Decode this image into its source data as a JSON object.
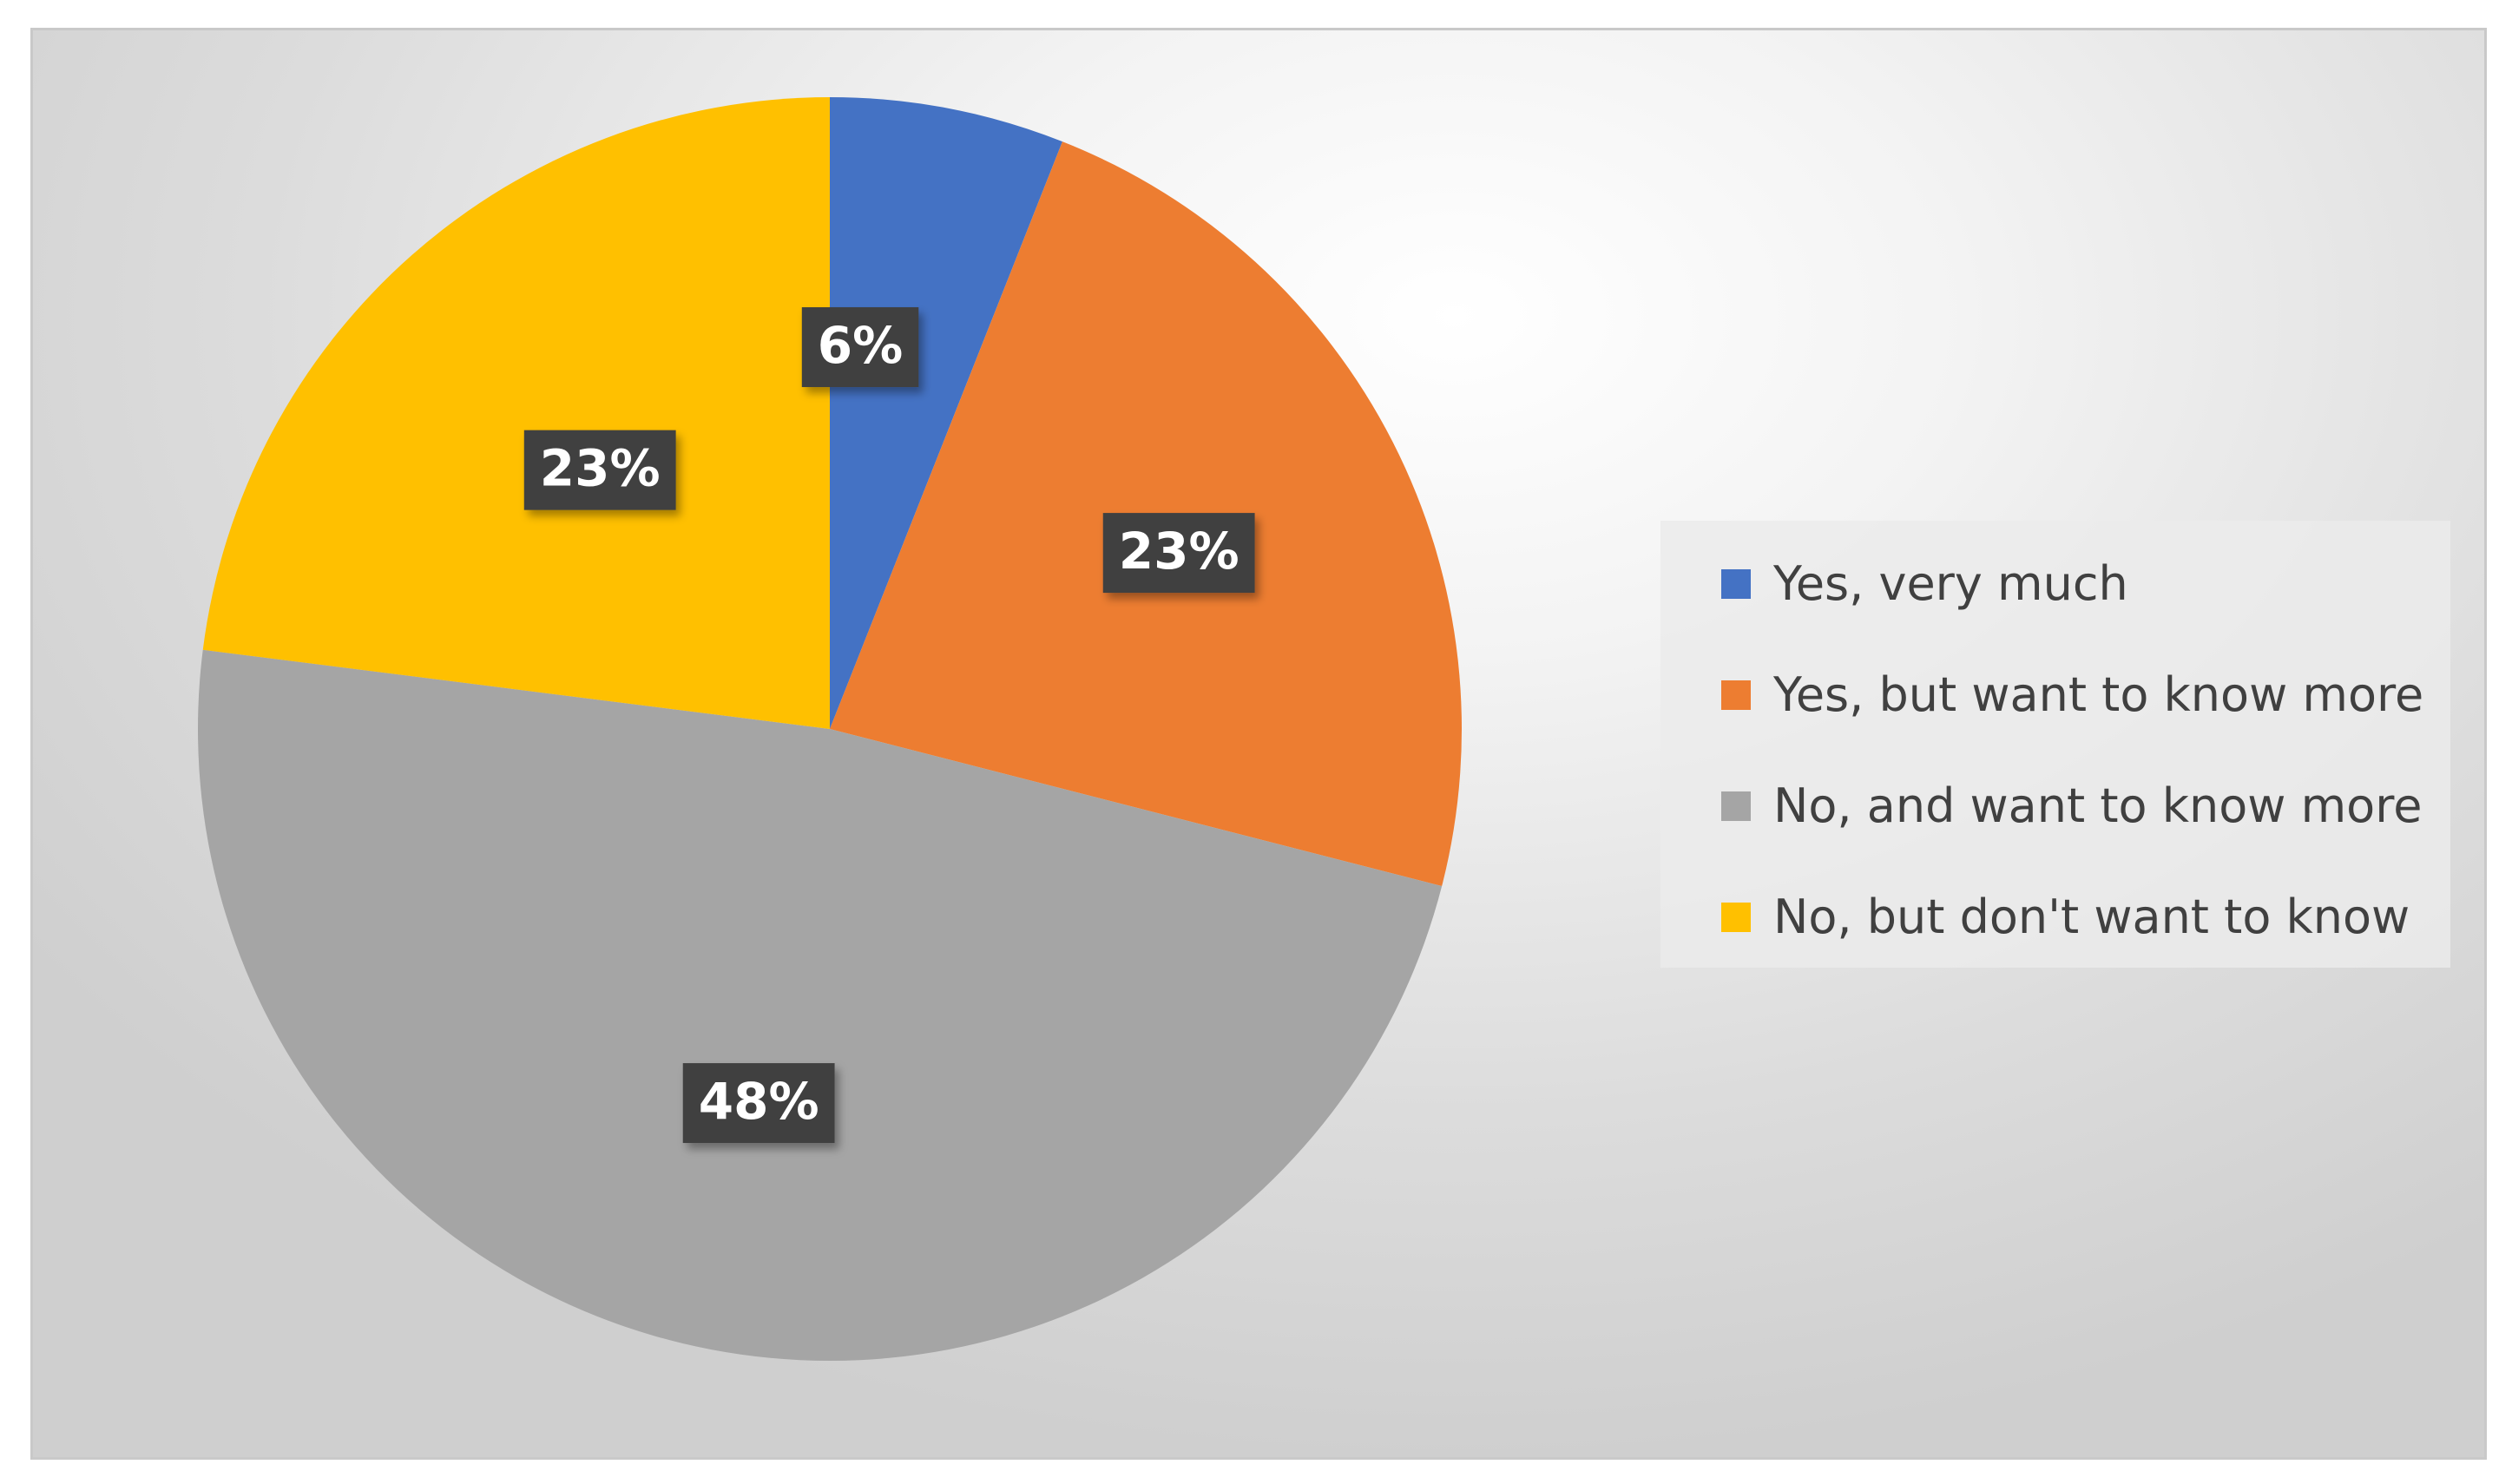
{
  "chart_data": {
    "type": "pie",
    "categories": [
      "Yes, very much",
      "Yes, but want to know more",
      "No, and want to know more",
      "No, but don't want to know"
    ],
    "values": [
      6,
      23,
      48,
      23
    ],
    "data_labels": [
      "6%",
      "23%",
      "48%",
      "23%"
    ],
    "colors": [
      "#4472C4",
      "#ED7D31",
      "#A5A5A5",
      "#FFC000"
    ],
    "start_angle_deg": 0,
    "direction": "clockwise",
    "legend_position": "right",
    "label_style": {
      "background": "#404040",
      "text_color": "#ffffff"
    }
  }
}
